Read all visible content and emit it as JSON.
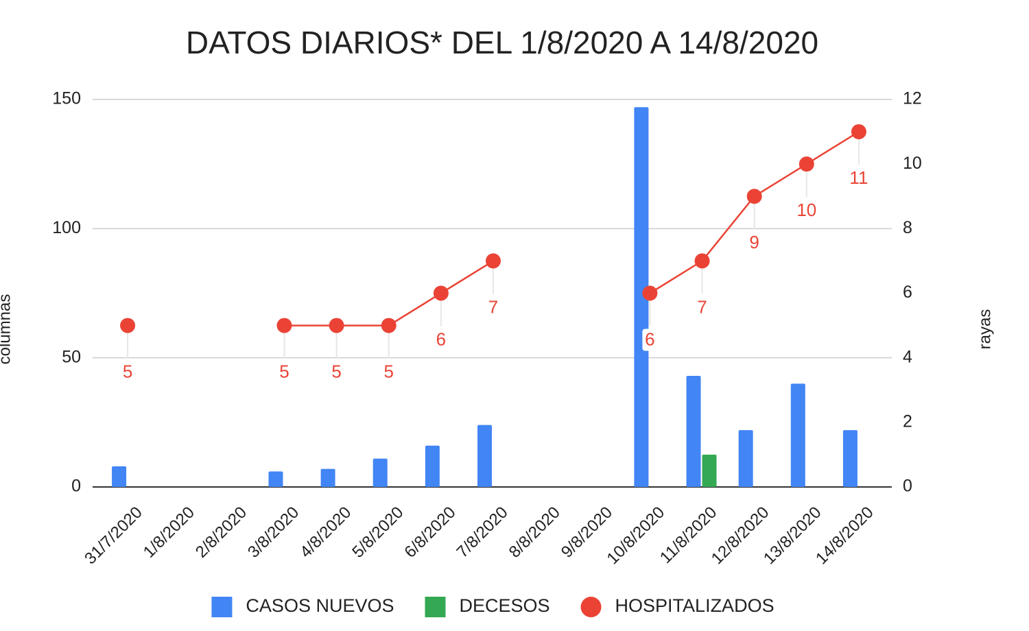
{
  "chart_data": {
    "type": "combo",
    "title": "DATOS DIARIOS* DEL 1/8/2020 A 14/8/2020",
    "ylabel": "columnas",
    "y2label": "rayas",
    "categories": [
      "31/7/2020",
      "1/8/2020",
      "2/8/2020",
      "3/8/2020",
      "4/8/2020",
      "5/8/2020",
      "6/8/2020",
      "7/8/2020",
      "8/8/2020",
      "9/8/2020",
      "10/8/2020",
      "11/8/2020",
      "12/8/2020",
      "13/8/2020",
      "14/8/2020"
    ],
    "series": [
      {
        "name": "CASOS NUEVOS",
        "type": "bar",
        "color": "#4285f4",
        "values": [
          8,
          null,
          null,
          6,
          7,
          11,
          16,
          24,
          null,
          null,
          147,
          43,
          22,
          40,
          22
        ]
      },
      {
        "name": "DECESOS",
        "type": "bar",
        "axis": "y2",
        "color": "#34a853",
        "values": [
          null,
          null,
          null,
          null,
          null,
          null,
          null,
          null,
          null,
          null,
          null,
          1,
          null,
          null,
          null
        ]
      },
      {
        "name": "HOSPITALIZADOS",
        "type": "line",
        "axis": "y2",
        "color": "#ea4335",
        "data_labels": true,
        "values": [
          5,
          null,
          null,
          5,
          5,
          5,
          6,
          7,
          null,
          null,
          6,
          7,
          9,
          10,
          11
        ]
      }
    ],
    "ylim": [
      0,
      150
    ],
    "yticks": [
      0,
      50,
      100,
      150
    ],
    "y2lim": [
      0,
      12
    ],
    "y2ticks": [
      0,
      2,
      4,
      6,
      8,
      10,
      12
    ],
    "grid": true,
    "legend": "bottom"
  }
}
